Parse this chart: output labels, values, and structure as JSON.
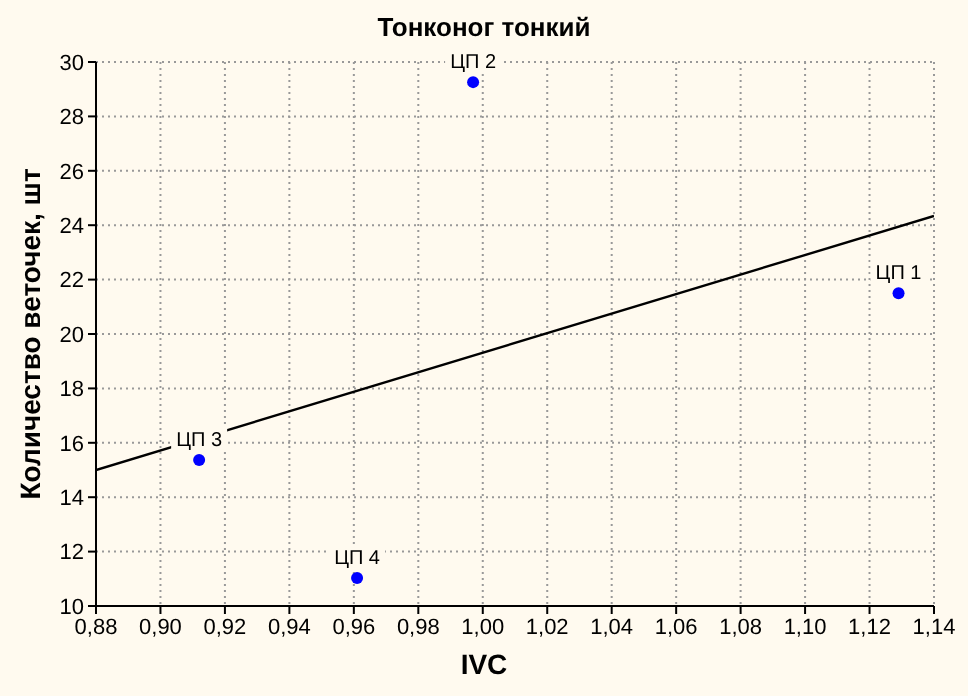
{
  "chart_data": {
    "type": "scatter",
    "title": "Тонконог тонкий",
    "xlabel": "IVC",
    "ylabel": "Количество веточек, шт",
    "xlim": [
      0.88,
      1.14
    ],
    "xticks": [
      {
        "value": 0.88,
        "label": "0,88"
      },
      {
        "value": 0.9,
        "label": "0,90"
      },
      {
        "value": 0.92,
        "label": "0,92"
      },
      {
        "value": 0.94,
        "label": "0,94"
      },
      {
        "value": 0.96,
        "label": "0,96"
      },
      {
        "value": 0.98,
        "label": "0,98"
      },
      {
        "value": 1.0,
        "label": "1,00"
      },
      {
        "value": 1.02,
        "label": "1,02"
      },
      {
        "value": 1.04,
        "label": "1,04"
      },
      {
        "value": 1.06,
        "label": "1,06"
      },
      {
        "value": 1.08,
        "label": "1,08"
      },
      {
        "value": 1.1,
        "label": "1,10"
      },
      {
        "value": 1.12,
        "label": "1,12"
      },
      {
        "value": 1.14,
        "label": "1,14"
      }
    ],
    "ylim": [
      10,
      30
    ],
    "yticks": [
      10,
      12,
      14,
      16,
      18,
      20,
      22,
      24,
      26,
      28,
      30
    ],
    "grid": true,
    "legend": false,
    "series": [
      {
        "color": "#0000ff",
        "marker": "circle",
        "x": [
          1.129,
          0.997,
          0.912,
          0.961
        ],
        "values": [
          21.5,
          29.26,
          15.37,
          11.03
        ]
      },
      {
        "type": "line",
        "color": "#000000",
        "marker": "none",
        "line_style": "solid",
        "x": [
          0.88,
          1.14
        ],
        "values": [
          15.0,
          24.34
        ]
      }
    ],
    "annotations": [
      {
        "text": "ЦП 1",
        "x": 1.129,
        "y": 21.5
      },
      {
        "text": "ЦП 2",
        "x": 0.997,
        "y": 29.26
      },
      {
        "text": "ЦП 3",
        "x": 0.912,
        "y": 15.37
      },
      {
        "text": "ЦП 4",
        "x": 0.961,
        "y": 11.03
      }
    ]
  }
}
